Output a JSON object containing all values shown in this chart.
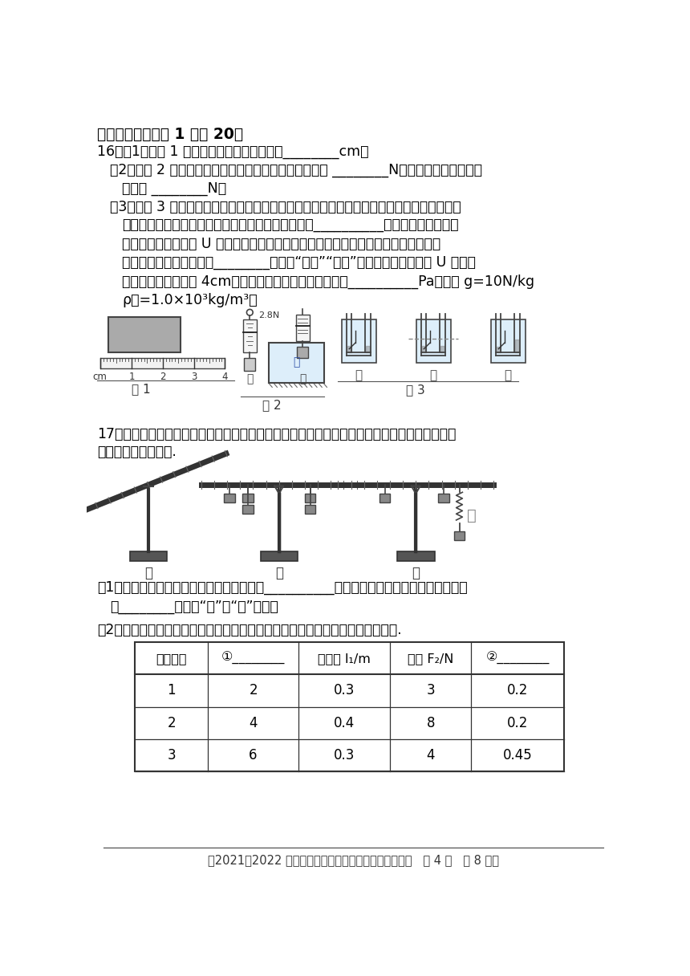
{
  "bg_color": "#ffffff",
  "title_section": "四、实验题（每空 1 分共 20）",
  "q16_header": "16．（1）如图 1 所示，图甲中木块的长度为________cm。",
  "q16_2": "（2）如图 2 所示，根据图中信息可知，金属块的重力是 ________N，金属块在水中受到的",
  "q16_2b": "浮力是 ________N。",
  "q16_3a": "（3）如图 3 所示，是用微小压强计探究液体内部压强特点的情境，比较甲图、乙图和丙图，",
  "q16_3b": "可以得到：在同一深度，液体内部向各个方向的压强__________；在乙图中把探头慢",
  "q16_3c": "慢下移，可以观察到 U 形管两边液体的高度差增大，从而得到：在同一种液体里，液",
  "q16_3d": "体的压强随深度的增加而________（选填“增大”“减小”）；如图丙，静止后 U 型管左",
  "q16_3e": "右两侧水柱高度差为 4cm，则橡皮膜在水中受到的压强为__________Pa。（取 g=10N/kg",
  "q16_3f": "ρ水=1.0×10³kg/m³）",
  "q17_header": "17．如图所示，利用鐵架台、带有刻度的杠杆、细线、弹簧测力计、数量足够的钓码等实验器材",
  "q17_header2": "探究杠杆的平衡条件.",
  "q17_1a": "（1）实验前杠杆如图甲所示，为使杠杆处在__________平衡状态，应将杠杆右端的平衡螺母",
  "q17_1b": "向________（选填“左”或“右”）调。",
  "q17_2": "（2）记录实验数据的表格如表所示，请将表头栏目、实验所记录的数据补充完整.",
  "table_headers": [
    "实验次数",
    "①________",
    "动力臂 l₁/m",
    "阻力 F₂/N",
    "②________"
  ],
  "table_row1": [
    "1",
    "2",
    "0.3",
    "3",
    "0.2"
  ],
  "table_row2": [
    "2",
    "4",
    "0.4",
    "8",
    "0.2"
  ],
  "table_row3": [
    "3",
    "6",
    "0.3",
    "4",
    "0.45"
  ],
  "footer": "【2021＆2022 学年度第二学期八年级物理期末测试试题   第 4 页   共 8 页】",
  "text_color": "#000000",
  "line_color": "#000000"
}
